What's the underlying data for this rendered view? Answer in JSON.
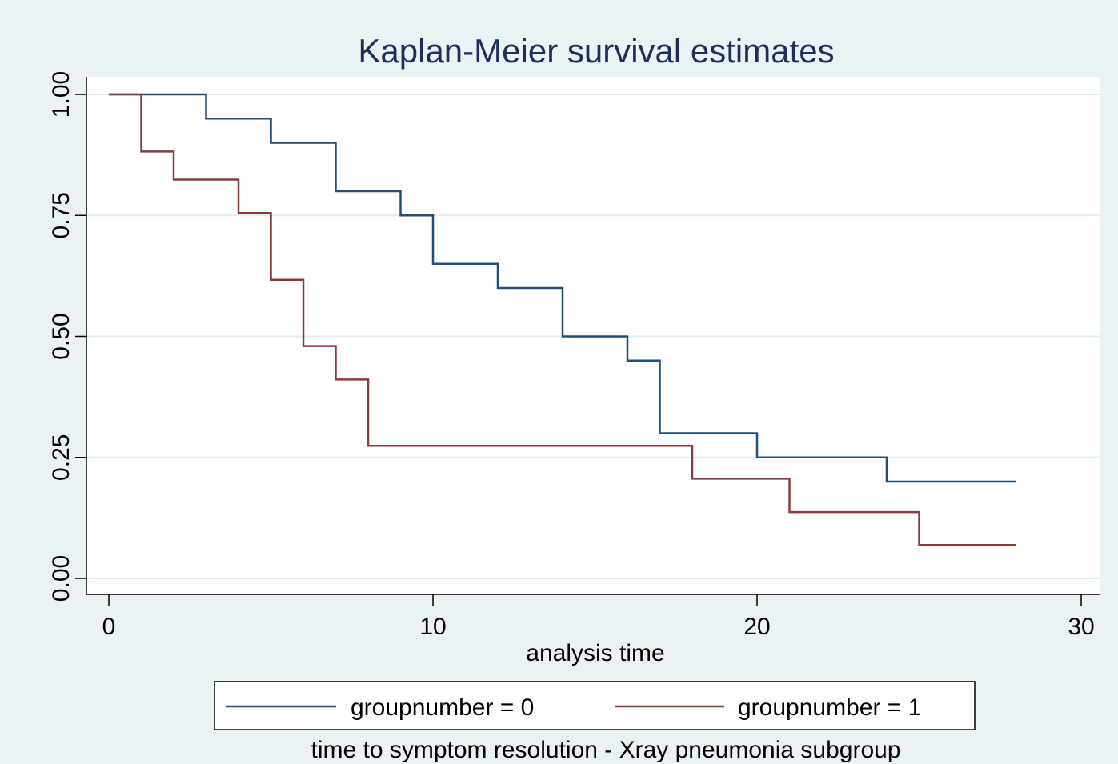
{
  "chart_data": {
    "type": "line",
    "step": true,
    "title": "Kaplan-Meier survival estimates",
    "xlabel": "analysis time",
    "ylabel": "",
    "note": "time to symptom resolution - Xray pneumonia subgroup",
    "xlim": [
      0,
      30
    ],
    "ylim": [
      0,
      1
    ],
    "x_ticks": [
      "0",
      "10",
      "20",
      "30"
    ],
    "y_ticks": [
      "0.00",
      "0.25",
      "0.50",
      "0.75",
      "1.00"
    ],
    "grid": true,
    "legend_position": "bottom",
    "series": [
      {
        "name": "groupnumber = 0",
        "color": "#1f4e79",
        "x": [
          0,
          3,
          5,
          7,
          9,
          10,
          12,
          14,
          16,
          17,
          20,
          24,
          28
        ],
        "y": [
          1.0,
          0.95,
          0.9,
          0.8,
          0.75,
          0.65,
          0.6,
          0.5,
          0.45,
          0.3,
          0.25,
          0.2,
          0.2
        ]
      },
      {
        "name": "groupnumber = 1",
        "color": "#8b3a3e",
        "x": [
          0,
          1,
          2,
          4,
          5,
          6,
          7,
          8,
          18,
          21,
          25,
          28
        ],
        "y": [
          1.0,
          0.882,
          0.824,
          0.755,
          0.617,
          0.48,
          0.411,
          0.274,
          0.206,
          0.137,
          0.069,
          0.069
        ]
      }
    ]
  }
}
